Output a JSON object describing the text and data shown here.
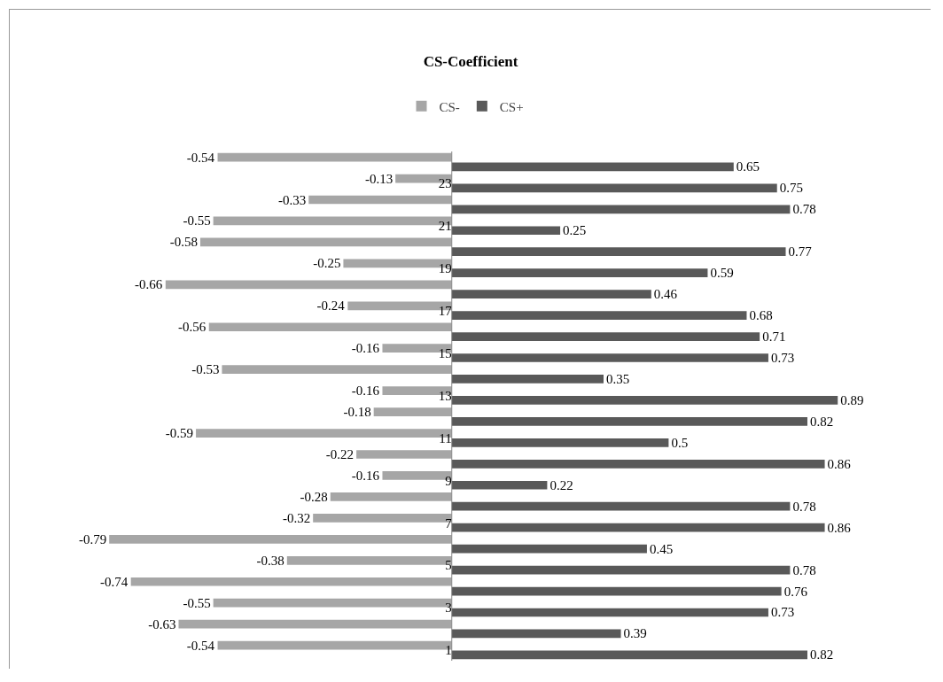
{
  "chart_data": {
    "type": "bar",
    "orientation": "horizontal",
    "title": "CS-Coefficient",
    "categories": [
      null,
      "23",
      null,
      "21",
      null,
      "19",
      null,
      "17",
      null,
      "15",
      null,
      "13",
      null,
      "11",
      null,
      "9",
      null,
      "7",
      null,
      "5",
      null,
      "3",
      null,
      "1"
    ],
    "series": [
      {
        "name": "CS-",
        "color": "#a6a6a6",
        "values": [
          -0.54,
          -0.13,
          -0.33,
          -0.55,
          -0.58,
          -0.25,
          -0.66,
          -0.24,
          -0.56,
          -0.16,
          -0.53,
          -0.16,
          -0.18,
          -0.59,
          -0.22,
          -0.16,
          -0.28,
          -0.32,
          -0.79,
          -0.38,
          -0.74,
          -0.55,
          -0.63,
          -0.54
        ]
      },
      {
        "name": "CS+",
        "color": "#595959",
        "values": [
          0.65,
          0.75,
          0.78,
          0.25,
          0.77,
          0.59,
          0.46,
          0.68,
          0.71,
          0.73,
          0.35,
          0.89,
          0.82,
          0.5,
          0.86,
          0.22,
          0.78,
          0.86,
          0.45,
          0.78,
          0.76,
          0.73,
          0.39,
          0.82
        ]
      }
    ],
    "data_labels": true,
    "legend": "top"
  }
}
